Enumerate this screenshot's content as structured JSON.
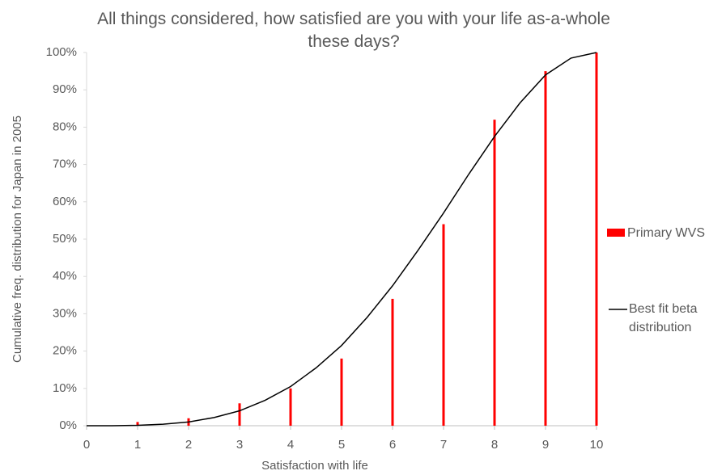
{
  "chart_data": {
    "type": "bar",
    "title": "All things considered, how satisfied are you with your life as-a-whole these days?",
    "xlabel": "Satisfaction with life",
    "ylabel": "Cumulative freq. distribution for Japan in 2005",
    "xlim": [
      0,
      10
    ],
    "xticks": [
      0,
      1,
      2,
      3,
      4,
      5,
      6,
      7,
      8,
      9,
      10
    ],
    "ylim": [
      0,
      100
    ],
    "yticks": [
      {
        "value": 0,
        "label": "0%"
      },
      {
        "value": 10,
        "label": "10%"
      },
      {
        "value": 20,
        "label": "20%"
      },
      {
        "value": 30,
        "label": "30%"
      },
      {
        "value": 40,
        "label": "40%"
      },
      {
        "value": 50,
        "label": "50%"
      },
      {
        "value": 60,
        "label": "60%"
      },
      {
        "value": 70,
        "label": "70%"
      },
      {
        "value": 80,
        "label": "80%"
      },
      {
        "value": 90,
        "label": "90%"
      },
      {
        "value": 100,
        "label": "100%"
      }
    ],
    "series": [
      {
        "name": "Primary WVS",
        "type": "bar",
        "color": "#ff0000",
        "x": [
          1,
          2,
          3,
          4,
          5,
          6,
          7,
          8,
          9,
          10
        ],
        "values": [
          1,
          2,
          6,
          10,
          18,
          34,
          54,
          82,
          95,
          100
        ]
      },
      {
        "name": "Best fit beta distribution",
        "type": "line",
        "color": "#000000",
        "x": [
          0,
          0.5,
          1,
          1.5,
          2,
          2.5,
          3,
          3.5,
          4,
          4.5,
          5,
          5.5,
          6,
          6.5,
          7,
          7.5,
          8,
          8.5,
          9,
          9.5,
          10
        ],
        "values": [
          0,
          0,
          0.1,
          0.4,
          1,
          2.2,
          4,
          6.8,
          10.5,
          15.5,
          21.5,
          29,
          37.5,
          47,
          57,
          67.5,
          77.5,
          86.5,
          94,
          98.5,
          100
        ]
      }
    ]
  }
}
